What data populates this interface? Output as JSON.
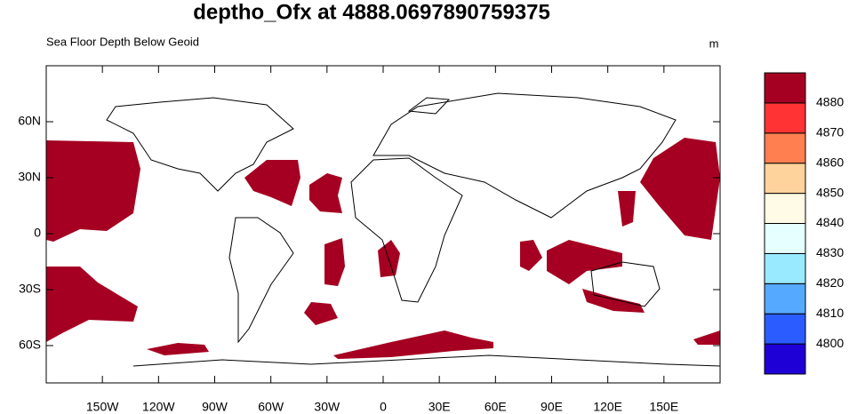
{
  "chart_data": {
    "type": "map",
    "title": "deptho_Ofx at 4888.0697890759375",
    "subtitle": "Sea Floor Depth Below Geoid",
    "units": "m",
    "xlim": [
      -180,
      180
    ],
    "ylim": [
      -80,
      90
    ],
    "xticks": [
      {
        "value": -150,
        "label": "150W"
      },
      {
        "value": -120,
        "label": "120W"
      },
      {
        "value": -90,
        "label": "90W"
      },
      {
        "value": -60,
        "label": "60W"
      },
      {
        "value": -30,
        "label": "30W"
      },
      0,
      {
        "value": 30,
        "label": "30E"
      },
      {
        "value": 60,
        "label": "60E"
      },
      {
        "value": 90,
        "label": "90E"
      },
      {
        "value": 120,
        "label": "120E"
      },
      {
        "value": 150,
        "label": "150E"
      }
    ],
    "yticks": [
      {
        "value": -60,
        "label": "60S"
      },
      {
        "value": -30,
        "label": "30S"
      },
      0,
      {
        "value": 30,
        "label": "30N"
      },
      {
        "value": 60,
        "label": "60N"
      }
    ],
    "levels": [
      4800,
      4810,
      4820,
      4830,
      4840,
      4850,
      4860,
      4870,
      4880
    ],
    "colors": [
      "#1e00d6",
      "#2a5cff",
      "#55aaff",
      "#99eaff",
      "#e6ffff",
      "#fffbe6",
      "#ffd39b",
      "#ff7f50",
      "#ff3333",
      "#a50021"
    ]
  }
}
